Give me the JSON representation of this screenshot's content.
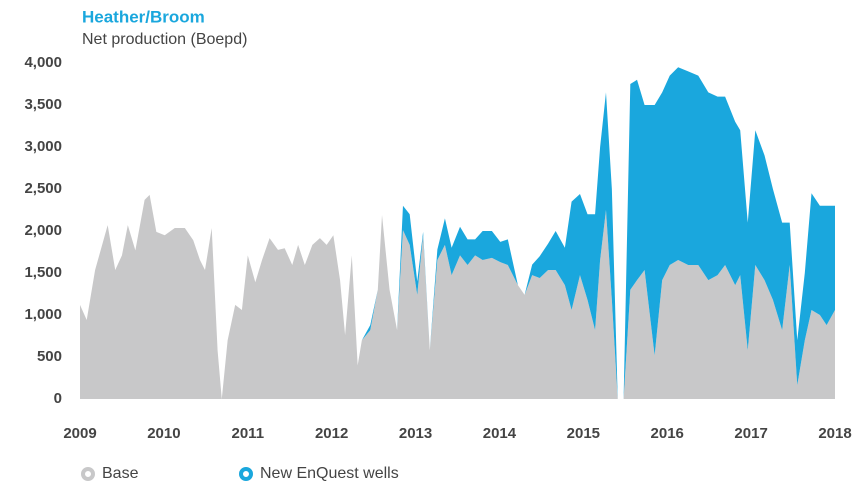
{
  "chart_data": {
    "type": "stacked_area",
    "title": "Heather/Broom",
    "subtitle": "Net production (Boepd)",
    "x": [
      2009.0,
      2009.08,
      2009.18,
      2009.33,
      2009.42,
      2009.5,
      2009.57,
      2009.66,
      2009.77,
      2009.83,
      2009.91,
      2010.01,
      2010.13,
      2010.25,
      2010.35,
      2010.43,
      2010.49,
      2010.57,
      2010.64,
      2010.69,
      2010.76,
      2010.85,
      2010.93,
      2011.0,
      2011.09,
      2011.17,
      2011.26,
      2011.36,
      2011.44,
      2011.53,
      2011.6,
      2011.68,
      2011.77,
      2011.86,
      2011.94,
      2012.02,
      2012.1,
      2012.16,
      2012.24,
      2012.31,
      2012.36,
      2012.46,
      2012.55,
      2012.6,
      2012.69,
      2012.78,
      2012.85,
      2012.93,
      2013.02,
      2013.09,
      2013.17,
      2013.26,
      2013.35,
      2013.43,
      2013.53,
      2013.62,
      2013.71,
      2013.8,
      2013.91,
      2014.01,
      2014.1,
      2014.22,
      2014.3,
      2014.39,
      2014.48,
      2014.58,
      2014.67,
      2014.78,
      2014.86,
      2014.96,
      2015.05,
      2015.14,
      2015.2,
      2015.27,
      2015.34,
      2015.41,
      2015.48,
      2015.56,
      2015.64,
      2015.73,
      2015.85,
      2015.94,
      2016.03,
      2016.13,
      2016.25,
      2016.37,
      2016.49,
      2016.6,
      2016.69,
      2016.81,
      2016.87,
      2016.96,
      2017.05,
      2017.16,
      2017.26,
      2017.37,
      2017.46,
      2017.55,
      2017.64,
      2017.72,
      2017.82,
      2017.9,
      2018.0
    ],
    "series": [
      {
        "name": "Base",
        "color": "#c8c8c9",
        "values": [
          1120,
          940,
          1535,
          2070,
          1535,
          1710,
          2070,
          1770,
          2370,
          2430,
          1990,
          1950,
          2035,
          2035,
          1890,
          1655,
          1535,
          2035,
          580,
          0,
          700,
          1120,
          1060,
          1710,
          1390,
          1655,
          1915,
          1775,
          1795,
          1595,
          1835,
          1595,
          1835,
          1915,
          1835,
          1950,
          1415,
          760,
          1710,
          400,
          700,
          820,
          1300,
          2190,
          1300,
          820,
          2010,
          1835,
          1240,
          1950,
          580,
          1655,
          1835,
          1475,
          1710,
          1595,
          1710,
          1655,
          1680,
          1630,
          1595,
          1355,
          1240,
          1475,
          1440,
          1535,
          1535,
          1355,
          1060,
          1475,
          1180,
          820,
          1655,
          2250,
          1180,
          0,
          0,
          1300,
          1415,
          1535,
          520,
          1415,
          1595,
          1655,
          1595,
          1595,
          1415,
          1475,
          1595,
          1355,
          1475,
          580,
          1595,
          1415,
          1180,
          820,
          1595,
          165,
          700,
          1060,
          1000,
          880,
          1060
        ]
      },
      {
        "name": "New EnQuest wells",
        "color": "#1aa7dd",
        "values": [
          0,
          0,
          0,
          0,
          0,
          0,
          0,
          0,
          0,
          0,
          0,
          0,
          0,
          0,
          0,
          0,
          0,
          0,
          0,
          0,
          0,
          0,
          0,
          0,
          0,
          0,
          0,
          0,
          0,
          0,
          0,
          0,
          0,
          0,
          0,
          0,
          0,
          0,
          0,
          0,
          0,
          60,
          0,
          0,
          0,
          0,
          290,
          365,
          160,
          40,
          0,
          125,
          315,
          325,
          340,
          305,
          190,
          345,
          320,
          240,
          305,
          0,
          0,
          125,
          260,
          315,
          465,
          445,
          1290,
          965,
          1020,
          1380,
          1345,
          1400,
          1320,
          0,
          0,
          2450,
          2385,
          1965,
          2980,
          2235,
          2255,
          2295,
          2305,
          2255,
          2235,
          2125,
          2005,
          1945,
          1725,
          1520,
          1605,
          1485,
          1320,
          1280,
          505,
          535,
          800,
          1390,
          1300,
          1420,
          1240
        ]
      }
    ],
    "xlim": [
      2009,
      2018
    ],
    "xticks": [
      2009,
      2010,
      2011,
      2012,
      2013,
      2014,
      2015,
      2016,
      2017,
      2018
    ],
    "ylim": [
      0,
      4000
    ],
    "yticks": [
      0,
      500,
      {
        "value": 1000,
        "label": "1,000"
      },
      {
        "value": 1500,
        "label": "1,500"
      },
      {
        "value": 2000,
        "label": "2,000"
      },
      {
        "value": 2500,
        "label": "2,500"
      },
      {
        "value": 3000,
        "label": "3,000"
      },
      {
        "value": 3500,
        "label": "3,500"
      },
      {
        "value": 4000,
        "label": "4,000"
      }
    ],
    "grid": false,
    "legend": "bottom"
  }
}
